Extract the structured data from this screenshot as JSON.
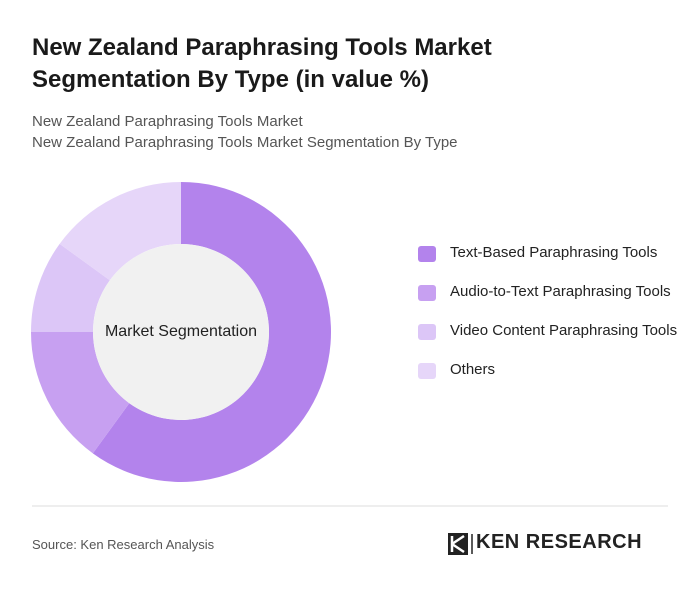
{
  "chart_data": {
    "type": "pie",
    "title": "New Zealand Paraphrasing Tools Market Segmentation By Type (in value %)",
    "subtitle": [
      "New Zealand Paraphrasing Tools Market",
      "New Zealand Paraphrasing Tools Market Segmentation By Type"
    ],
    "center_label": "Market Segmentation",
    "categories": [
      "Text-Based Paraphrasing Tools",
      "Audio-to-Text Paraphrasing Tools",
      "Video Content Paraphrasing Tools",
      "Others"
    ],
    "values": [
      60,
      15,
      10,
      15
    ],
    "colors": [
      "#b383ec",
      "#c7a0f1",
      "#dcc6f7",
      "#e6d6f9"
    ],
    "source": "Source: Ken Research Analysis",
    "logo": "KEN RESEARCH"
  }
}
